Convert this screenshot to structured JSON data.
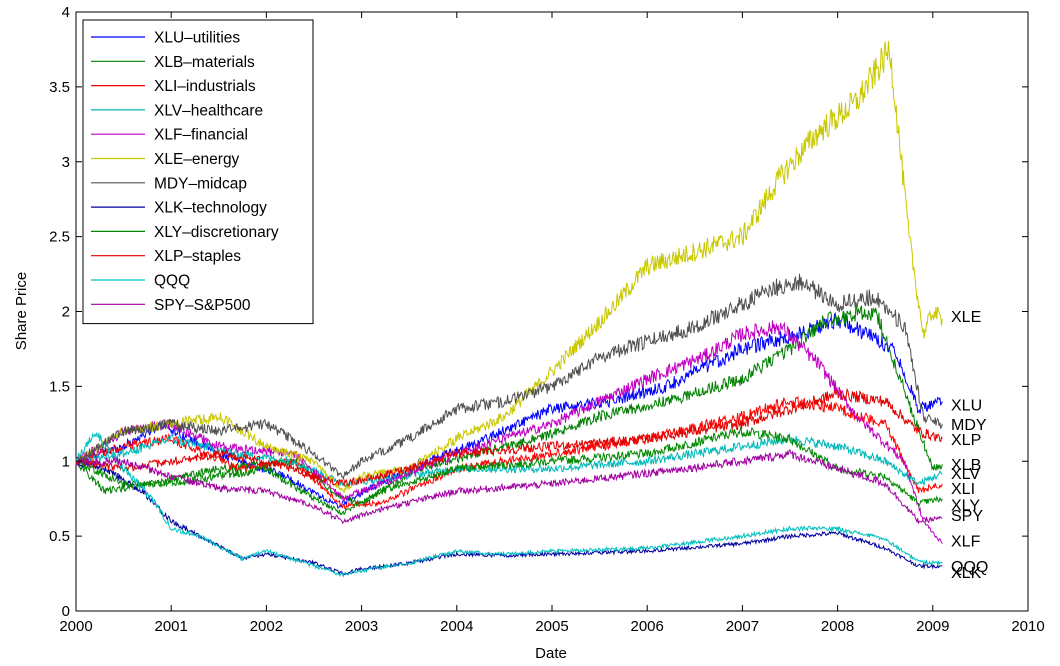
{
  "chart_data": {
    "type": "line",
    "title": "",
    "xlabel": "Date",
    "ylabel": "Share Price",
    "xlim": [
      2000,
      2010
    ],
    "ylim": [
      0,
      4
    ],
    "xticks": [
      "2000",
      "2001",
      "2002",
      "2003",
      "2004",
      "2005",
      "2006",
      "2007",
      "2008",
      "2009",
      "2010"
    ],
    "yticks": [
      "0",
      "0.5",
      "1",
      "1.5",
      "2",
      "2.5",
      "3",
      "3.5",
      "4"
    ],
    "grid": false,
    "legend_position": "top-left",
    "series": [
      {
        "name": "XLU–utilities",
        "end_label": "XLU",
        "color": "#0000ff",
        "x": [
          2000,
          2000.5,
          2000.9,
          2001.5,
          2002.2,
          2002.75,
          2003.1,
          2003.6,
          2004.2,
          2005.0,
          2005.6,
          2006.2,
          2007.0,
          2007.6,
          2008.0,
          2008.6,
          2008.85,
          2009.1
        ],
        "values": [
          1.0,
          1.1,
          1.25,
          1.05,
          0.9,
          0.7,
          0.82,
          0.98,
          1.12,
          1.35,
          1.4,
          1.5,
          1.75,
          1.85,
          1.95,
          1.75,
          1.35,
          1.4
        ]
      },
      {
        "name": "XLB–materials",
        "end_label": "XLB",
        "color": "#008000",
        "x": [
          2000,
          2000.3,
          2000.8,
          2001.5,
          2002.3,
          2002.8,
          2003.0,
          2003.6,
          2004.2,
          2005.0,
          2005.5,
          2006.2,
          2007.0,
          2007.5,
          2007.9,
          2008.4,
          2008.8,
          2009.0,
          2009.1
        ],
        "values": [
          1.0,
          0.8,
          0.85,
          0.95,
          1.0,
          0.75,
          0.72,
          0.95,
          1.05,
          1.18,
          1.3,
          1.4,
          1.55,
          1.75,
          1.95,
          2.0,
          1.3,
          0.95,
          0.98
        ]
      },
      {
        "name": "XLI–industrials",
        "end_label": "XLI",
        "color": "#ff0000",
        "x": [
          2000,
          2000.5,
          2001.0,
          2001.7,
          2002.3,
          2002.8,
          2003.2,
          2004.0,
          2005.0,
          2006.0,
          2007.0,
          2007.5,
          2008.0,
          2008.5,
          2008.85,
          2009.1
        ],
        "values": [
          1.0,
          1.1,
          1.15,
          0.95,
          1.0,
          0.7,
          0.72,
          0.95,
          1.05,
          1.15,
          1.3,
          1.4,
          1.35,
          1.25,
          0.8,
          0.85
        ]
      },
      {
        "name": "XLV–healthcare",
        "end_label": "XLV",
        "color": "#00b8b8",
        "x": [
          2000,
          2000.5,
          2001.0,
          2001.7,
          2002.3,
          2002.8,
          2003.2,
          2004.0,
          2005.0,
          2006.0,
          2007.0,
          2007.5,
          2008.0,
          2008.5,
          2008.85,
          2009.1
        ],
        "values": [
          1.0,
          1.05,
          1.15,
          1.05,
          1.0,
          0.85,
          0.88,
          0.95,
          0.95,
          1.0,
          1.1,
          1.15,
          1.1,
          1.0,
          0.85,
          0.92
        ]
      },
      {
        "name": "XLF–financial",
        "end_label": "XLF",
        "color": "#c000c0",
        "x": [
          2000,
          2000.5,
          2001.0,
          2001.5,
          2002.3,
          2002.8,
          2003.2,
          2004.0,
          2005.0,
          2006.0,
          2006.6,
          2007.0,
          2007.4,
          2007.8,
          2008.2,
          2008.7,
          2008.9,
          2009.1
        ],
        "values": [
          1.0,
          1.2,
          1.25,
          1.1,
          1.05,
          0.75,
          0.85,
          1.05,
          1.25,
          1.55,
          1.7,
          1.85,
          1.9,
          1.65,
          1.3,
          1.0,
          0.6,
          0.45
        ]
      },
      {
        "name": "XLE–energy",
        "end_label": "XLE",
        "color": "#c8c800",
        "x": [
          2000,
          2000.5,
          2001.0,
          2001.5,
          2002.0,
          2002.5,
          2002.8,
          2003.0,
          2003.5,
          2004.0,
          2004.5,
          2005.0,
          2005.3,
          2005.6,
          2006.0,
          2006.5,
          2007.0,
          2007.4,
          2007.8,
          2008.2,
          2008.55,
          2008.75,
          2008.9,
          2009.0,
          2009.1
        ],
        "values": [
          1.0,
          1.2,
          1.25,
          1.3,
          1.1,
          1.0,
          0.8,
          0.9,
          0.95,
          1.15,
          1.3,
          1.6,
          1.8,
          2.0,
          2.3,
          2.4,
          2.5,
          2.9,
          3.2,
          3.4,
          3.75,
          2.5,
          1.85,
          2.0,
          1.95
        ]
      },
      {
        "name": "MDY–midcap",
        "end_label": "MDY",
        "color": "#505050",
        "x": [
          2000,
          2000.5,
          2001.0,
          2001.5,
          2002.0,
          2002.5,
          2002.8,
          2003.0,
          2003.5,
          2004.0,
          2004.5,
          2005.0,
          2005.5,
          2006.0,
          2006.5,
          2007.0,
          2007.3,
          2007.6,
          2008.0,
          2008.4,
          2008.7,
          2008.9,
          2009.1
        ],
        "values": [
          1.0,
          1.2,
          1.25,
          1.2,
          1.25,
          1.05,
          0.9,
          1.0,
          1.15,
          1.35,
          1.4,
          1.5,
          1.7,
          1.8,
          1.9,
          2.05,
          2.15,
          2.2,
          2.05,
          2.1,
          1.9,
          1.3,
          1.25
        ]
      },
      {
        "name": "XLK–technology",
        "end_label": "XLK",
        "color": "#0000a0",
        "x": [
          2000,
          2000.3,
          2000.7,
          2001.0,
          2001.3,
          2001.75,
          2002.0,
          2002.5,
          2002.8,
          2003.0,
          2003.5,
          2004.0,
          2004.5,
          2005.0,
          2006.0,
          2007.0,
          2007.5,
          2008.0,
          2008.5,
          2008.85,
          2009.1
        ],
        "values": [
          1.0,
          0.95,
          0.8,
          0.6,
          0.5,
          0.35,
          0.38,
          0.32,
          0.25,
          0.28,
          0.32,
          0.38,
          0.37,
          0.38,
          0.4,
          0.45,
          0.5,
          0.52,
          0.42,
          0.3,
          0.3
        ]
      },
      {
        "name": "XLY–discretionary",
        "end_label": "XLY",
        "color": "#008800",
        "x": [
          2000,
          2000.5,
          2001.0,
          2001.5,
          2002.0,
          2002.5,
          2002.8,
          2003.2,
          2004.0,
          2005.0,
          2006.0,
          2007.0,
          2007.5,
          2008.0,
          2008.5,
          2008.85,
          2009.1
        ],
        "values": [
          1.0,
          0.85,
          0.85,
          0.9,
          0.95,
          0.75,
          0.65,
          0.8,
          0.95,
          1.0,
          1.05,
          1.2,
          1.15,
          0.95,
          0.9,
          0.72,
          0.75
        ]
      },
      {
        "name": "XLP–staples",
        "end_label": "XLP",
        "color": "#e00000",
        "x": [
          2000,
          2000.5,
          2001.0,
          2001.5,
          2002.0,
          2002.5,
          2002.8,
          2003.2,
          2004.0,
          2005.0,
          2006.0,
          2007.0,
          2007.5,
          2008.0,
          2008.5,
          2008.85,
          2009.1
        ],
        "values": [
          1.0,
          0.95,
          1.0,
          1.05,
          1.0,
          0.9,
          0.85,
          0.9,
          1.05,
          1.1,
          1.15,
          1.25,
          1.35,
          1.45,
          1.4,
          1.2,
          1.15
        ]
      },
      {
        "name": "QQQ",
        "end_label": "QQQ",
        "color": "#00c0c0",
        "x": [
          2000,
          2000.2,
          2000.5,
          2000.8,
          2001.0,
          2001.3,
          2001.75,
          2002.0,
          2002.5,
          2002.8,
          2003.0,
          2003.5,
          2004.0,
          2004.5,
          2005.0,
          2006.0,
          2007.0,
          2007.5,
          2008.0,
          2008.5,
          2008.85,
          2009.1
        ],
        "values": [
          1.0,
          1.2,
          0.95,
          0.75,
          0.55,
          0.5,
          0.35,
          0.4,
          0.3,
          0.24,
          0.27,
          0.32,
          0.4,
          0.38,
          0.4,
          0.42,
          0.5,
          0.55,
          0.55,
          0.48,
          0.33,
          0.32
        ]
      },
      {
        "name": "SPY–S&P500",
        "end_label": "SPY",
        "color": "#a000a0",
        "x": [
          2000,
          2000.5,
          2001.0,
          2001.5,
          2002.0,
          2002.5,
          2002.8,
          2003.2,
          2004.0,
          2005.0,
          2006.0,
          2007.0,
          2007.5,
          2008.0,
          2008.5,
          2008.85,
          2009.1
        ],
        "values": [
          1.0,
          1.0,
          0.9,
          0.82,
          0.8,
          0.7,
          0.6,
          0.68,
          0.8,
          0.85,
          0.92,
          1.0,
          1.05,
          0.95,
          0.85,
          0.6,
          0.62
        ]
      }
    ],
    "end_labels": [
      {
        "text": "XLE",
        "y": 1.97
      },
      {
        "text": "XLU",
        "y": 1.38
      },
      {
        "text": "MDY",
        "y": 1.25
      },
      {
        "text": "XLP",
        "y": 1.15
      },
      {
        "text": "XLB",
        "y": 0.98
      },
      {
        "text": "XLV",
        "y": 0.92
      },
      {
        "text": "XLI",
        "y": 0.82
      },
      {
        "text": "XLY",
        "y": 0.71
      },
      {
        "text": "SPY",
        "y": 0.64
      },
      {
        "text": "XLF",
        "y": 0.47
      },
      {
        "text": "QQQ",
        "y": 0.3
      },
      {
        "text": "XLK",
        "y": 0.26
      }
    ]
  }
}
